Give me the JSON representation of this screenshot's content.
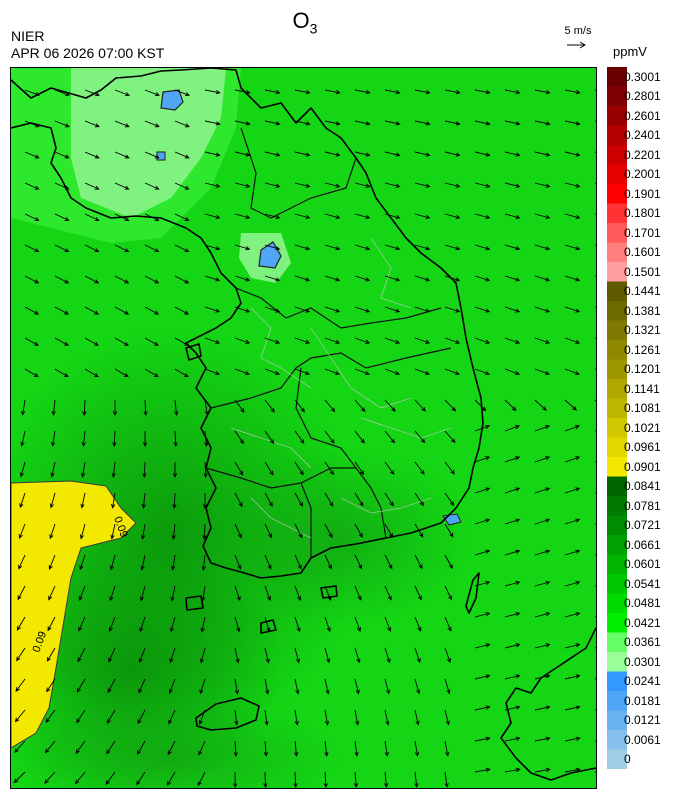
{
  "header": {
    "title": "O",
    "title_sub": "3",
    "agency": "NIER",
    "timestamp": "APR 06 2026 07:00 KST"
  },
  "wind_reference": {
    "label": "5 m/s"
  },
  "legend": {
    "unit": "ppmV",
    "ticks": [
      "0.3001",
      "0.2801",
      "0.2601",
      "0.2401",
      "0.2201",
      "0.2001",
      "0.1901",
      "0.1801",
      "0.1701",
      "0.1601",
      "0.1501",
      "0.1441",
      "0.1381",
      "0.1321",
      "0.1261",
      "0.1201",
      "0.1141",
      "0.1081",
      "0.1021",
      "0.0961",
      "0.0901",
      "0.0841",
      "0.0781",
      "0.0721",
      "0.0661",
      "0.0601",
      "0.0541",
      "0.0481",
      "0.0421",
      "0.0361",
      "0.0301",
      "0.0241",
      "0.0181",
      "0.0121",
      "0.0061",
      "0"
    ],
    "colors": [
      "#6b0000",
      "#7f0000",
      "#990000",
      "#b30000",
      "#cc0000",
      "#e60000",
      "#ff0000",
      "#ff3333",
      "#ff5a5a",
      "#ff7f7f",
      "#ff9f9f",
      "#5e5a00",
      "#6e6a00",
      "#7e7900",
      "#8e8900",
      "#9e9800",
      "#aea800",
      "#beb700",
      "#d0c700",
      "#e2d800",
      "#f2e800",
      "#006600",
      "#007a00",
      "#008c00",
      "#00a000",
      "#00b400",
      "#00c800",
      "#00dc00",
      "#00f000",
      "#66ff66",
      "#99ff99",
      "#3399ff",
      "#4ea6f5",
      "#69b3f0",
      "#84c0eb",
      "#9fcfe8"
    ]
  },
  "map": {
    "contour_labels": [
      "0.09",
      "0.09"
    ]
  }
}
